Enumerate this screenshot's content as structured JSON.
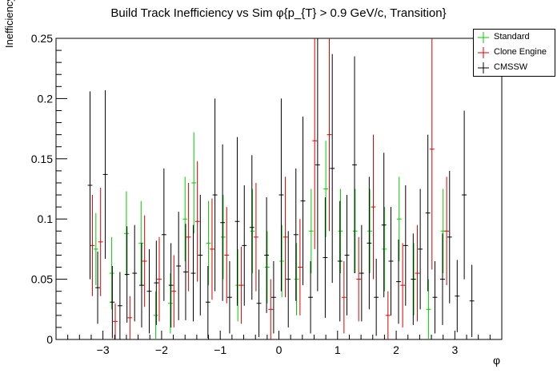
{
  "chart_data": {
    "type": "scatter",
    "title": "Build Track Inefficiency vs Sim    φ{p_{T} > 0.9 GeV/c, Transition}",
    "xlabel": "φ",
    "ylabel": "Inefficiency",
    "xlim": [
      -3.8,
      3.8
    ],
    "ylim": [
      0,
      0.25
    ],
    "x_ticks": [
      -3,
      -2,
      -1,
      0,
      1,
      2,
      3
    ],
    "y_ticks": [
      0,
      0.05,
      0.1,
      0.15,
      0.2,
      0.25
    ],
    "x_tick_labels": [
      "−3",
      "−2",
      "−1",
      "0",
      "1",
      "2",
      "3"
    ],
    "y_tick_labels": [
      "0",
      "0.05",
      "0.1",
      "0.15",
      "0.2",
      "0.25"
    ],
    "grid": false,
    "legend_position": "top-right",
    "bin_half_width": 0.04,
    "series": [
      {
        "name": "Standard",
        "color": "#00cc00",
        "x": [
          -3.12,
          -2.85,
          -2.6,
          -2.35,
          -2.1,
          -1.85,
          -1.6,
          -1.45,
          -1.2,
          -0.95,
          -0.7,
          -0.45,
          -0.2,
          0.05,
          0.3,
          0.55,
          0.8,
          1.05,
          1.3,
          1.55,
          1.8,
          2.05,
          2.3,
          2.55,
          2.8
        ],
        "y": [
          0.075,
          0.055,
          0.088,
          0.08,
          0.02,
          0.03,
          0.1,
          0.13,
          0.08,
          0.085,
          0.045,
          0.09,
          0.06,
          0.065,
          0.05,
          0.09,
          0.125,
          0.09,
          0.09,
          0.09,
          0.075,
          0.1,
          0.05,
          0.025,
          0.09
        ],
        "err": [
          0.03,
          0.03,
          0.035,
          0.035,
          0.02,
          0.025,
          0.035,
          0.042,
          0.035,
          0.035,
          0.03,
          0.035,
          0.03,
          0.03,
          0.03,
          0.035,
          0.04,
          0.035,
          0.035,
          0.035,
          0.035,
          0.035,
          0.03,
          0.025,
          0.035
        ]
      },
      {
        "name": "Clone Engine",
        "color": "#dd0000",
        "x": [
          -3.18,
          -3.04,
          -2.79,
          -2.54,
          -2.29,
          -2.04,
          -1.79,
          -1.54,
          -1.39,
          -1.14,
          -0.89,
          -0.64,
          -0.39,
          -0.14,
          0.11,
          0.36,
          0.61,
          0.86,
          1.11,
          1.36,
          1.61,
          1.86,
          2.11,
          2.36,
          2.61,
          2.86
        ],
        "y": [
          0.078,
          0.081,
          0.015,
          0.018,
          0.065,
          0.05,
          0.04,
          0.085,
          0.098,
          0.075,
          0.07,
          0.045,
          0.085,
          0.025,
          0.085,
          0.06,
          0.165,
          0.17,
          0.035,
          0.05,
          0.11,
          0.02,
          0.045,
          0.055,
          0.158,
          0.09
        ],
        "err": [
          0.042,
          0.045,
          0.015,
          0.018,
          0.038,
          0.035,
          0.03,
          0.045,
          0.05,
          0.042,
          0.04,
          0.032,
          0.045,
          0.025,
          0.05,
          0.04,
          0.09,
          0.08,
          0.03,
          0.035,
          0.06,
          0.02,
          0.035,
          0.04,
          0.1,
          0.045
        ]
      },
      {
        "name": "CMSSW",
        "color": "#000000",
        "x": [
          -3.22,
          -3.09,
          -2.96,
          -2.84,
          -2.71,
          -2.59,
          -2.46,
          -2.34,
          -2.21,
          -2.09,
          -1.96,
          -1.84,
          -1.71,
          -1.59,
          -1.46,
          -1.34,
          -1.21,
          -1.09,
          -0.96,
          -0.84,
          -0.71,
          -0.59,
          -0.46,
          -0.34,
          -0.21,
          -0.09,
          0.04,
          0.16,
          0.29,
          0.41,
          0.54,
          0.66,
          0.79,
          0.91,
          1.04,
          1.16,
          1.29,
          1.41,
          1.54,
          1.66,
          1.79,
          1.91,
          2.04,
          2.16,
          2.29,
          2.41,
          2.54,
          2.66,
          2.79,
          2.91,
          3.04,
          3.16,
          3.29
        ],
        "y": [
          0.128,
          0.043,
          0.137,
          0.031,
          0.028,
          0.054,
          0.055,
          0.045,
          0.04,
          0.047,
          0.087,
          0.045,
          0.061,
          0.056,
          0.055,
          0.07,
          0.031,
          0.12,
          0.097,
          0.035,
          0.098,
          0.078,
          0.093,
          0.03,
          0.07,
          0.035,
          0.12,
          0.05,
          0.087,
          0.115,
          0.035,
          0.145,
          0.068,
          0.142,
          0.065,
          0.07,
          0.145,
          0.055,
          0.08,
          0.035,
          0.095,
          0.065,
          0.048,
          0.078,
          0.05,
          0.075,
          0.105,
          0.035,
          0.05,
          0.085,
          0.036,
          0.12,
          0.032
        ],
        "err": [
          0.078,
          0.03,
          0.07,
          0.03,
          0.028,
          0.04,
          0.04,
          0.035,
          0.035,
          0.035,
          0.055,
          0.035,
          0.045,
          0.04,
          0.04,
          0.05,
          0.03,
          0.08,
          0.065,
          0.03,
          0.07,
          0.05,
          0.06,
          0.028,
          0.048,
          0.03,
          0.08,
          0.04,
          0.055,
          0.07,
          0.03,
          0.105,
          0.05,
          0.095,
          0.05,
          0.05,
          0.09,
          0.04,
          0.055,
          0.032,
          0.06,
          0.045,
          0.035,
          0.05,
          0.038,
          0.05,
          0.065,
          0.03,
          0.038,
          0.055,
          0.03,
          0.07,
          0.03
        ]
      }
    ]
  }
}
